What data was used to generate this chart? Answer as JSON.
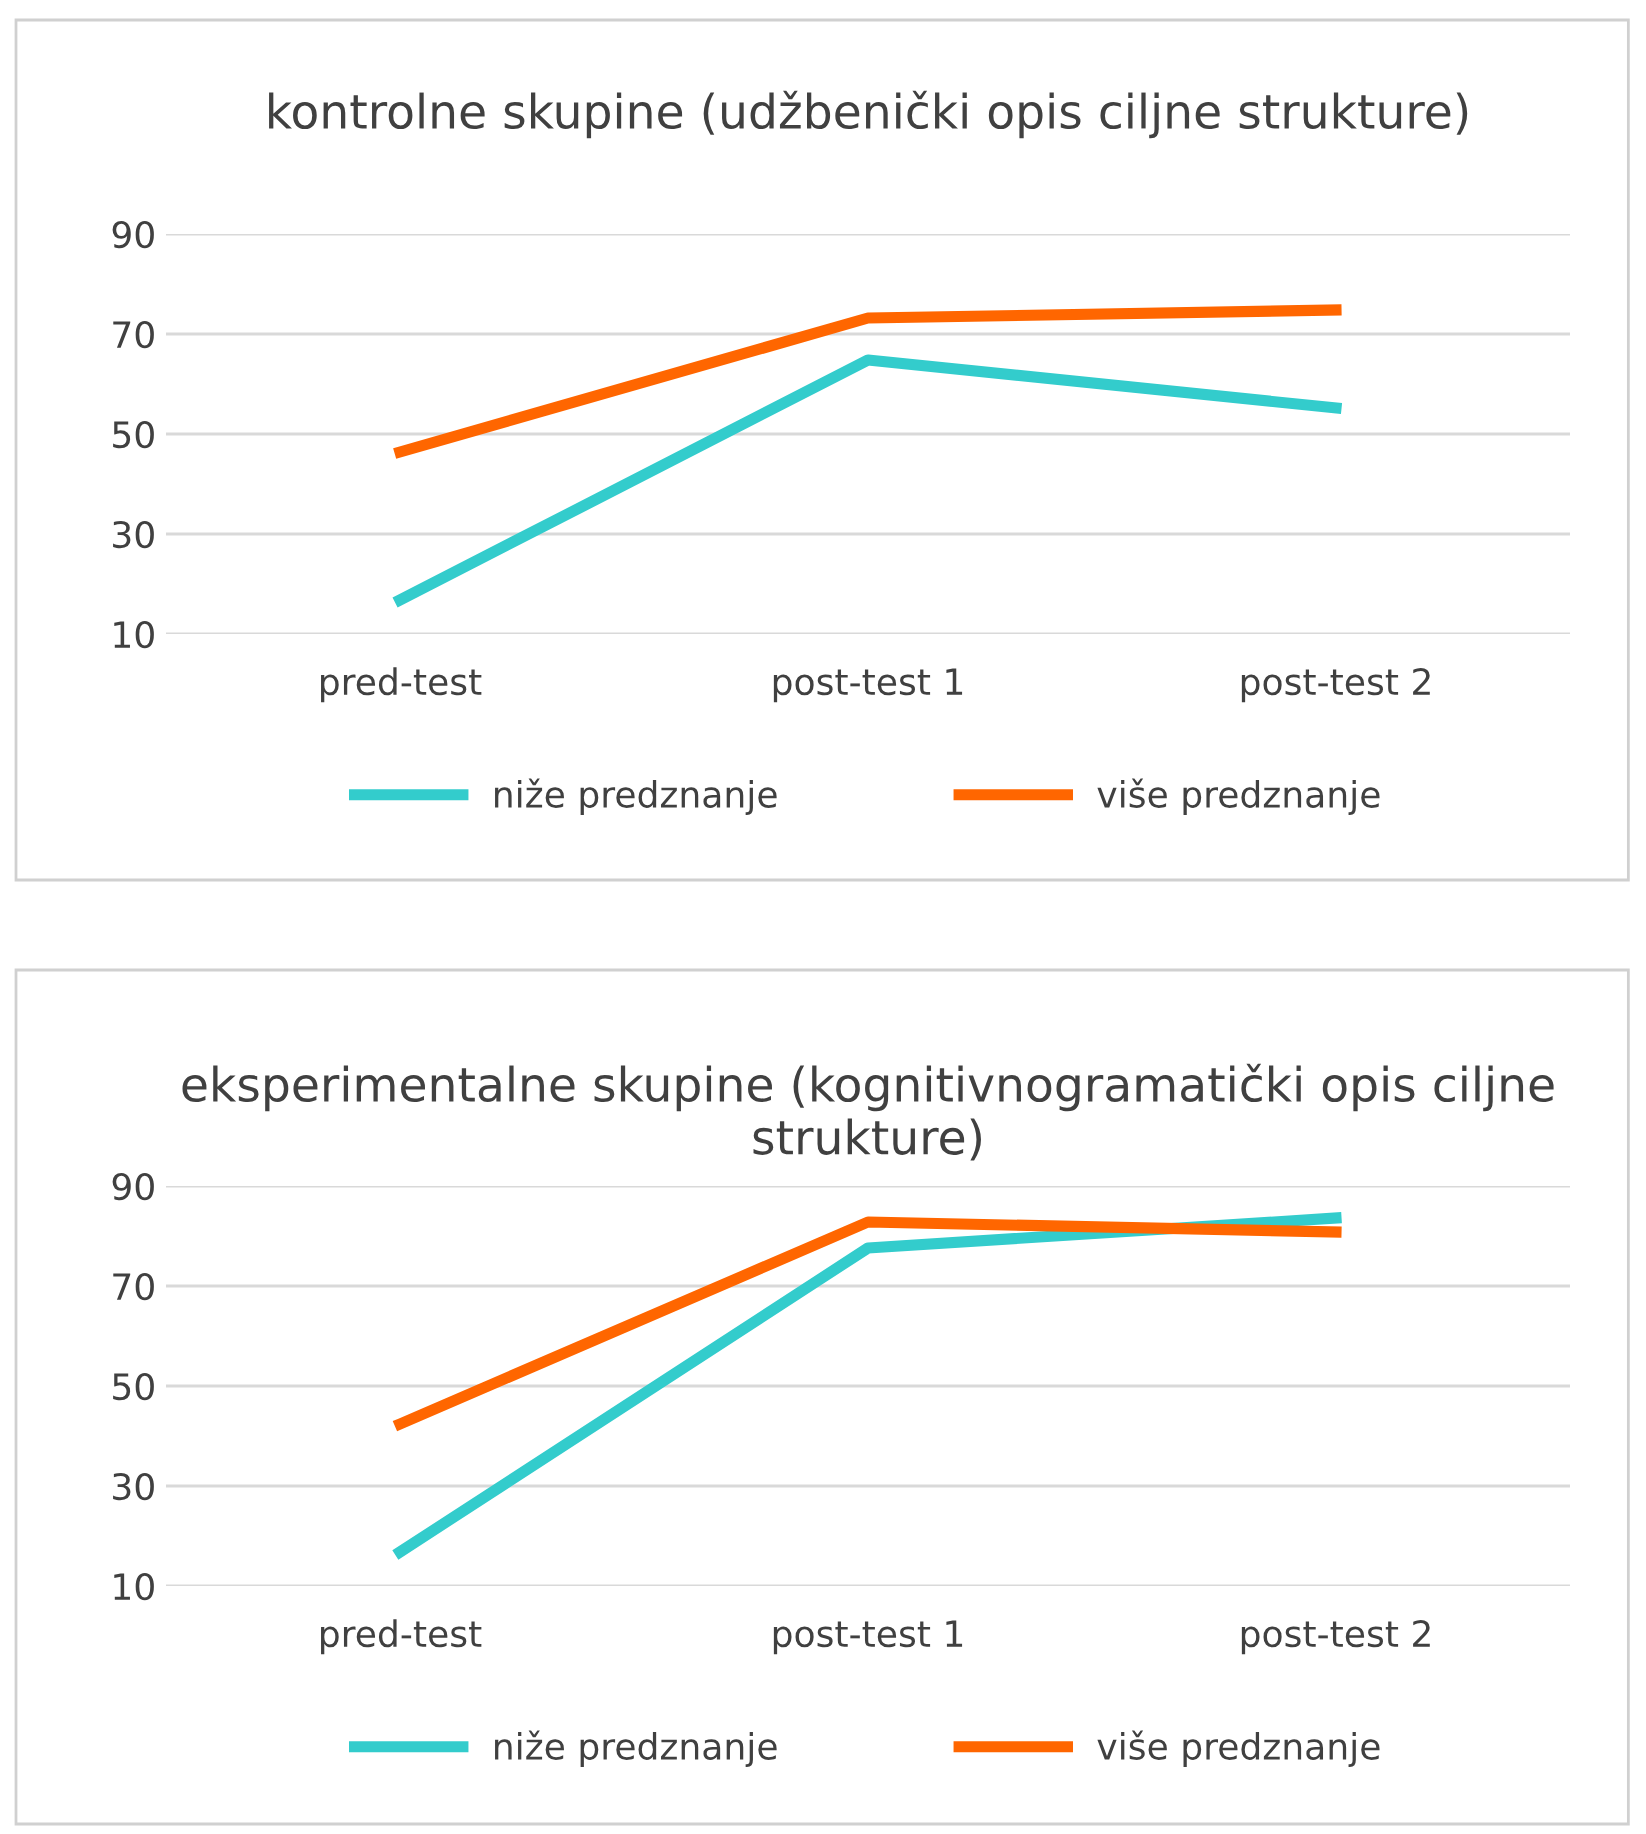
{
  "chart_data": [
    {
      "type": "line",
      "title": "kontrolne skupine (udžbenički opis ciljne strukture)",
      "categories": [
        "pred-test",
        "post-test 1",
        "post-test 2"
      ],
      "series": [
        {
          "name": "niže predznanje",
          "color": "#33cccc",
          "values": [
            16.8,
            64.8,
            55.2
          ]
        },
        {
          "name": "više predznanje",
          "color": "#ff6600",
          "values": [
            46.4,
            73.2,
            74.8
          ]
        }
      ],
      "ylim": [
        10,
        90
      ],
      "yticks": [
        10,
        30,
        50,
        70,
        90
      ],
      "grid": "y",
      "legend": "bottom",
      "marker": "none",
      "line_style": "solid"
    },
    {
      "type": "line",
      "title": "eksperimentalne skupine (kognitivnogramatički opis ciljne strukture)",
      "categories": [
        "pred-test",
        "post-test 1",
        "post-test 2"
      ],
      "series": [
        {
          "name": "niže predznanje",
          "color": "#33cccc",
          "values": [
            16.8,
            77.6,
            83.6
          ]
        },
        {
          "name": "više predznanje",
          "color": "#ff6600",
          "values": [
            42.4,
            82.8,
            80.8
          ]
        }
      ],
      "ylim": [
        10,
        90
      ],
      "yticks": [
        10,
        30,
        50,
        70,
        90
      ],
      "grid": "y",
      "legend": "bottom",
      "marker": "none",
      "line_style": "solid"
    }
  ]
}
